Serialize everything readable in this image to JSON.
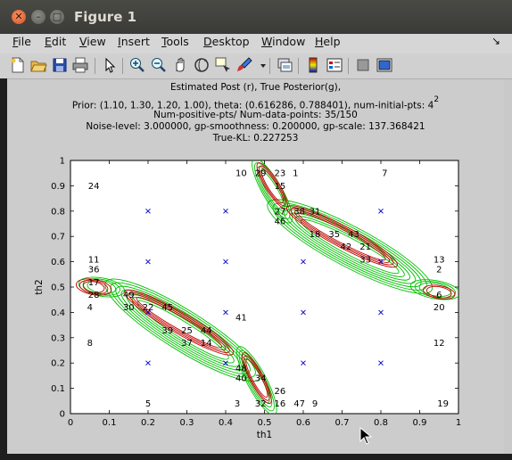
{
  "window": {
    "title": "Figure 1"
  },
  "menubar": {
    "items": [
      {
        "label": "File",
        "u": "F",
        "rest": "ile"
      },
      {
        "label": "Edit",
        "u": "E",
        "rest": "dit"
      },
      {
        "label": "View",
        "u": "V",
        "rest": "iew"
      },
      {
        "label": "Insert",
        "u": "I",
        "rest": "nsert"
      },
      {
        "label": "Tools",
        "u": "T",
        "rest": "ools"
      },
      {
        "label": "Desktop",
        "u": "D",
        "rest": "esktop"
      },
      {
        "label": "Window",
        "u": "W",
        "rest": "indow"
      },
      {
        "label": "Help",
        "u": "H",
        "rest": "elp"
      }
    ]
  },
  "toolbar": {
    "tools": [
      "new-figure-icon",
      "open-file-icon",
      "save-icon",
      "print-icon",
      "pointer-arrow-icon",
      "zoom-in-icon",
      "zoom-out-icon",
      "pan-hand-icon",
      "rotate-3d-icon",
      "data-cursor-icon",
      "brush-icon",
      "brush-dropdown-icon",
      "link-plot-icon",
      "colorbar-icon",
      "legend-icon",
      "hide-plot-tools-icon",
      "show-plot-tools-icon"
    ]
  },
  "plot": {
    "title_lines": [
      "Estimated Post (r), True Posterior(g),",
      "Prior: (1.10, 1.30, 1.20, 1.00), theta: (0.616286, 0.788401), num-initial-pts: 4",
      "Num-positive-pts/ Num-data-points: 35/150",
      "Noise-level: 3.000000, gp-smoothness: 0.200000, gp-scale: 137.368421",
      "True-KL: 0.227253"
    ],
    "superscript": "2"
  },
  "chart_data": {
    "type": "contour",
    "xlabel": "th1",
    "ylabel": "th2",
    "xlim": [
      0,
      1
    ],
    "ylim": [
      0,
      1
    ],
    "xticks": [
      "0",
      "0.1",
      "0.2",
      "0.3",
      "0.4",
      "0.5",
      "0.6",
      "0.7",
      "0.8",
      "0.9",
      "1"
    ],
    "yticks": [
      "0",
      "0.1",
      "0.2",
      "0.3",
      "0.4",
      "0.5",
      "0.6",
      "0.7",
      "0.8",
      "0.9",
      "1"
    ],
    "grid": false,
    "colors": {
      "true_posterior": "#00c000",
      "estimated_post": "#c00000",
      "markers": "#0000c8"
    },
    "x_markers": [
      [
        0.2,
        0.8
      ],
      [
        0.4,
        0.8
      ],
      [
        0.8,
        0.8
      ],
      [
        0.2,
        0.6
      ],
      [
        0.4,
        0.6
      ],
      [
        0.6,
        0.6
      ],
      [
        0.8,
        0.6
      ],
      [
        0.2,
        0.4
      ],
      [
        0.4,
        0.4
      ],
      [
        0.6,
        0.4
      ],
      [
        0.8,
        0.4
      ],
      [
        0.2,
        0.2
      ],
      [
        0.4,
        0.2
      ],
      [
        0.6,
        0.2
      ],
      [
        0.8,
        0.2
      ]
    ],
    "point_labels": [
      {
        "t": "24",
        "x": 0.06,
        "y": 0.9
      },
      {
        "t": "10",
        "x": 0.44,
        "y": 0.95
      },
      {
        "t": "29",
        "x": 0.49,
        "y": 0.95
      },
      {
        "t": "23",
        "x": 0.54,
        "y": 0.95
      },
      {
        "t": "1",
        "x": 0.58,
        "y": 0.95
      },
      {
        "t": "7",
        "x": 0.81,
        "y": 0.95
      },
      {
        "t": "15",
        "x": 0.54,
        "y": 0.9
      },
      {
        "t": "27",
        "x": 0.54,
        "y": 0.8
      },
      {
        "t": "38",
        "x": 0.59,
        "y": 0.8
      },
      {
        "t": "31",
        "x": 0.63,
        "y": 0.8
      },
      {
        "t": "46",
        "x": 0.54,
        "y": 0.76
      },
      {
        "t": "18",
        "x": 0.63,
        "y": 0.71
      },
      {
        "t": "35",
        "x": 0.68,
        "y": 0.71
      },
      {
        "t": "43",
        "x": 0.73,
        "y": 0.71
      },
      {
        "t": "42",
        "x": 0.71,
        "y": 0.66
      },
      {
        "t": "21",
        "x": 0.76,
        "y": 0.66
      },
      {
        "t": "33",
        "x": 0.76,
        "y": 0.61
      },
      {
        "t": "13",
        "x": 0.95,
        "y": 0.61
      },
      {
        "t": "2",
        "x": 0.95,
        "y": 0.57
      },
      {
        "t": "11",
        "x": 0.06,
        "y": 0.61
      },
      {
        "t": "36",
        "x": 0.06,
        "y": 0.57
      },
      {
        "t": "17",
        "x": 0.06,
        "y": 0.52
      },
      {
        "t": "28",
        "x": 0.06,
        "y": 0.47
      },
      {
        "t": "49",
        "x": 0.15,
        "y": 0.47
      },
      {
        "t": "6",
        "x": 0.95,
        "y": 0.47
      },
      {
        "t": "4",
        "x": 0.05,
        "y": 0.42
      },
      {
        "t": "30",
        "x": 0.15,
        "y": 0.42
      },
      {
        "t": "22",
        "x": 0.2,
        "y": 0.42
      },
      {
        "t": "45",
        "x": 0.25,
        "y": 0.42
      },
      {
        "t": "20",
        "x": 0.95,
        "y": 0.42
      },
      {
        "t": "41",
        "x": 0.44,
        "y": 0.38
      },
      {
        "t": "39",
        "x": 0.25,
        "y": 0.33
      },
      {
        "t": "25",
        "x": 0.3,
        "y": 0.33
      },
      {
        "t": "44",
        "x": 0.35,
        "y": 0.33
      },
      {
        "t": "37",
        "x": 0.3,
        "y": 0.28
      },
      {
        "t": "14",
        "x": 0.35,
        "y": 0.28
      },
      {
        "t": "8",
        "x": 0.05,
        "y": 0.28
      },
      {
        "t": "12",
        "x": 0.95,
        "y": 0.28
      },
      {
        "t": "48",
        "x": 0.44,
        "y": 0.18
      },
      {
        "t": "40",
        "x": 0.44,
        "y": 0.14
      },
      {
        "t": "34",
        "x": 0.49,
        "y": 0.14
      },
      {
        "t": "26",
        "x": 0.54,
        "y": 0.09
      },
      {
        "t": "5",
        "x": 0.2,
        "y": 0.04
      },
      {
        "t": "3",
        "x": 0.43,
        "y": 0.04
      },
      {
        "t": "32",
        "x": 0.49,
        "y": 0.04
      },
      {
        "t": "16",
        "x": 0.54,
        "y": 0.04
      },
      {
        "t": "47",
        "x": 0.59,
        "y": 0.04
      },
      {
        "t": "9",
        "x": 0.63,
        "y": 0.04
      },
      {
        "t": "19",
        "x": 0.96,
        "y": 0.04
      }
    ]
  }
}
